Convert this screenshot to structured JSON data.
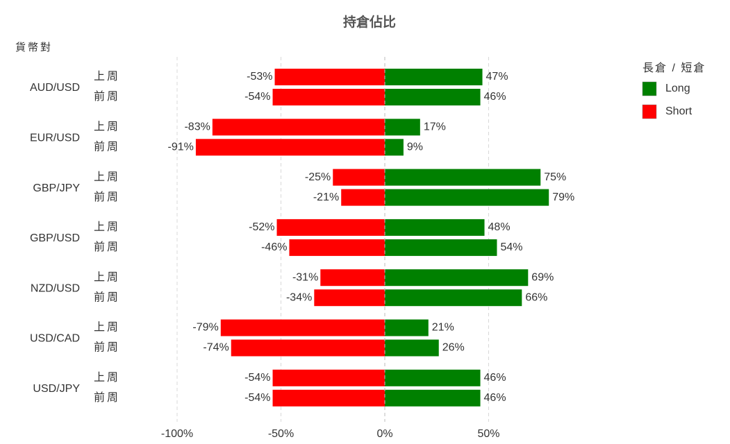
{
  "chart_data": {
    "type": "diverging-bar",
    "title": "持倉佔比",
    "y_axis_title": "貨幣對",
    "legend_title": "長倉 / 短倉",
    "legend_position": "top-right",
    "grid": true,
    "categories": [
      "AUD/USD",
      "EUR/USD",
      "GBP/JPY",
      "GBP/USD",
      "NZD/USD",
      "USD/CAD",
      "USD/JPY"
    ],
    "periods": [
      "上周",
      "前周"
    ],
    "series": [
      {
        "name": "Long",
        "color": "#008000",
        "values": [
          [
            47,
            46
          ],
          [
            17,
            9
          ],
          [
            75,
            79
          ],
          [
            48,
            54
          ],
          [
            69,
            66
          ],
          [
            21,
            26
          ],
          [
            46,
            46
          ]
        ],
        "value_labels": [
          [
            "47%",
            "46%"
          ],
          [
            "17%",
            "9%"
          ],
          [
            "75%",
            "79%"
          ],
          [
            "48%",
            "54%"
          ],
          [
            "69%",
            "66%"
          ],
          [
            "21%",
            "26%"
          ],
          [
            "46%",
            "46%"
          ]
        ]
      },
      {
        "name": "Short",
        "color": "#ff0000",
        "values": [
          [
            -53,
            -54
          ],
          [
            -83,
            -91
          ],
          [
            -25,
            -21
          ],
          [
            -52,
            -46
          ],
          [
            -31,
            -34
          ],
          [
            -79,
            -74
          ],
          [
            -54,
            -54
          ]
        ],
        "value_labels": [
          [
            "-53%",
            "-54%"
          ],
          [
            "-83%",
            "-91%"
          ],
          [
            "-25%",
            "-21%"
          ],
          [
            "-52%",
            "-46%"
          ],
          [
            "-31%",
            "-34%"
          ],
          [
            "-79%",
            "-74%"
          ],
          [
            "-54%",
            "-54%"
          ]
        ]
      }
    ],
    "xlim": [
      -100,
      100
    ],
    "xticks": [
      {
        "value": -100,
        "label": "-100%"
      },
      {
        "value": -50,
        "label": "-50%"
      },
      {
        "value": 0,
        "label": "0%"
      },
      {
        "value": 50,
        "label": "50%"
      }
    ]
  }
}
